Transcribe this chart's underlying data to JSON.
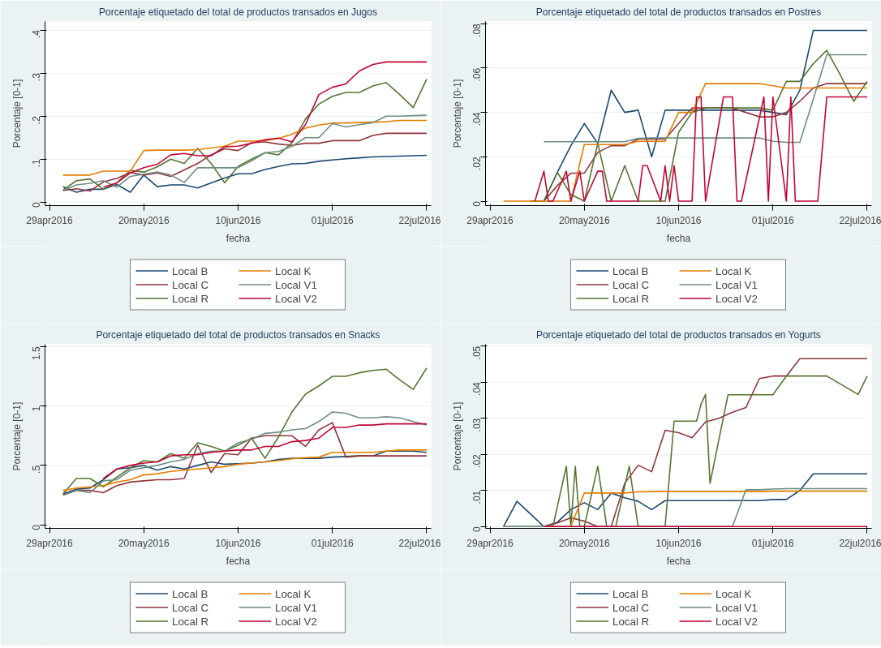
{
  "chart_data": [
    {
      "type": "line",
      "title": "Porcentaje etiquetado del total de productos transados en Jugos",
      "xlabel": "fecha",
      "ylabel": "Porcentaje [0-1]",
      "x": [
        "2016-05-02",
        "2016-05-05",
        "2016-05-08",
        "2016-05-11",
        "2016-05-14",
        "2016-05-17",
        "2016-05-20",
        "2016-05-23",
        "2016-05-26",
        "2016-05-29",
        "2016-06-01",
        "2016-06-04",
        "2016-06-07",
        "2016-06-10",
        "2016-06-13",
        "2016-06-16",
        "2016-06-19",
        "2016-06-22",
        "2016-06-25",
        "2016-06-28",
        "2016-07-01",
        "2016-07-04",
        "2016-07-07",
        "2016-07-10",
        "2016-07-13",
        "2016-07-16",
        "2016-07-19",
        "2016-07-22"
      ],
      "xlim": [
        "2016-04-28",
        "2016-07-23"
      ],
      "xticks": [
        {
          "value": "2016-04-29",
          "label": "29apr2016"
        },
        {
          "value": "2016-05-20",
          "label": "20may2016"
        },
        {
          "value": "2016-06-10",
          "label": "10jun2016"
        },
        {
          "value": "2016-07-01",
          "label": "01jul2016"
        },
        {
          "value": "2016-07-22",
          "label": "22jul2016"
        }
      ],
      "ylim": [
        -0.008,
        0.42
      ],
      "yticks": [
        0,
        {
          "value": 0.1,
          "label": ".1"
        },
        {
          "value": 0.2,
          "label": ".2"
        },
        {
          "value": 0.3,
          "label": ".3"
        },
        {
          "value": 0.4,
          "label": ".4"
        }
      ],
      "grid": "y",
      "legend": "bottom",
      "series": [
        {
          "name": "Local B",
          "color": "#1a476f",
          "values": [
            0.036,
            0.023,
            0.03,
            0.03,
            0.041,
            0.023,
            0.063,
            0.036,
            0.04,
            0.04,
            0.033,
            0.045,
            0.056,
            0.066,
            0.066,
            0.076,
            0.083,
            0.089,
            0.09,
            0.095,
            0.098,
            0.101,
            0.103,
            0.105,
            0.106,
            0.107,
            0.108,
            0.109
          ]
        },
        {
          "name": "Local C",
          "color": "#90353b",
          "values": [
            0.027,
            0.031,
            0.026,
            0.047,
            0.055,
            0.069,
            0.063,
            0.068,
            0.06,
            0.075,
            0.09,
            0.11,
            0.124,
            0.12,
            0.138,
            0.14,
            0.135,
            0.132,
            0.137,
            0.137,
            0.143,
            0.143,
            0.143,
            0.155,
            0.16,
            0.16,
            0.16,
            0.16
          ]
        },
        {
          "name": "Local R",
          "color": "#55752f",
          "values": [
            0.028,
            0.05,
            0.054,
            0.03,
            0.045,
            0.074,
            0.07,
            0.082,
            0.1,
            0.09,
            0.125,
            0.09,
            0.045,
            0.083,
            0.1,
            0.115,
            0.11,
            0.138,
            0.193,
            0.228,
            0.246,
            0.255,
            0.255,
            0.27,
            0.278,
            0.25,
            0.22,
            0.286
          ]
        },
        {
          "name": "Local K",
          "color": "#e37e00",
          "values": [
            0.063,
            0.063,
            0.063,
            0.072,
            0.072,
            0.072,
            0.12,
            0.121,
            0.121,
            0.121,
            0.122,
            0.126,
            0.13,
            0.142,
            0.142,
            0.143,
            0.148,
            0.158,
            0.172,
            0.179,
            0.184,
            0.184,
            0.185,
            0.186,
            0.187,
            0.19,
            0.19,
            0.19
          ]
        },
        {
          "name": "Local V1",
          "color": "#6e8e84",
          "values": [
            0.027,
            0.04,
            0.044,
            0.05,
            0.035,
            0.06,
            0.065,
            0.07,
            0.063,
            0.046,
            0.08,
            0.08,
            0.08,
            0.08,
            0.096,
            0.115,
            0.118,
            0.13,
            0.15,
            0.15,
            0.183,
            0.175,
            0.18,
            0.185,
            0.2,
            0.2,
            0.201,
            0.202
          ]
        },
        {
          "name": "Local V2",
          "color": "#c10534",
          "values": [
            null,
            null,
            null,
            0.035,
            0.045,
            0.068,
            0.08,
            0.088,
            0.11,
            0.113,
            0.108,
            0.108,
            0.129,
            0.13,
            0.137,
            0.145,
            0.149,
            0.14,
            0.18,
            0.25,
            0.267,
            0.275,
            0.305,
            0.32,
            0.326,
            0.326,
            0.326,
            0.326
          ]
        }
      ]
    },
    {
      "type": "line",
      "title": "Porcentaje etiquetado del total de productos transados en Postres",
      "xlabel": "fecha",
      "ylabel": "Porcentaje [0-1]",
      "x": [
        "2016-05-02",
        "2016-05-05",
        "2016-05-08",
        "2016-05-11",
        "2016-05-14",
        "2016-05-17",
        "2016-05-20",
        "2016-05-23",
        "2016-05-26",
        "2016-05-29",
        "2016-06-01",
        "2016-06-04",
        "2016-06-07",
        "2016-06-10",
        "2016-06-13",
        "2016-06-16",
        "2016-06-19",
        "2016-06-22",
        "2016-06-25",
        "2016-06-28",
        "2016-07-01",
        "2016-07-04",
        "2016-07-07",
        "2016-07-10",
        "2016-07-13",
        "2016-07-16",
        "2016-07-19",
        "2016-07-22"
      ],
      "xlim": [
        "2016-04-28",
        "2016-07-23"
      ],
      "xticks": [
        {
          "value": "2016-04-29",
          "label": "29apr2016"
        },
        {
          "value": "2016-05-20",
          "label": "20may2016"
        },
        {
          "value": "2016-06-10",
          "label": "10jun2016"
        },
        {
          "value": "2016-07-01",
          "label": "01jul2016"
        },
        {
          "value": "2016-07-22",
          "label": "22jul2016"
        }
      ],
      "ylim": [
        -0.002,
        0.081
      ],
      "yticks": [
        0,
        {
          "value": 0.02,
          "label": ".02"
        },
        {
          "value": 0.04,
          "label": ".04"
        },
        {
          "value": 0.06,
          "label": ".06"
        },
        {
          "value": 0.08,
          "label": ".08"
        }
      ],
      "grid": "y",
      "legend": "bottom",
      "series": [
        {
          "name": "Local B",
          "color": "#1a476f",
          "values": [
            null,
            null,
            null,
            0,
            0.013,
            0.025,
            0.035,
            0.026,
            0.05,
            0.04,
            0.041,
            0.02,
            0.041,
            0.041,
            0.041,
            0.041,
            0.041,
            0.041,
            0.041,
            0.041,
            0.04,
            0.039,
            0.05,
            0.077,
            0.077,
            0.077,
            0.077,
            0.077
          ]
        },
        {
          "name": "Local C",
          "color": "#90353b",
          "values": [
            null,
            null,
            0,
            0,
            0.007,
            0.0126,
            0.0126,
            0.022,
            0.025,
            0.025,
            0.028,
            0.028,
            0.028,
            0.035,
            0.042,
            0.042,
            0.042,
            0.042,
            0.04,
            0.038,
            0.038,
            0.04,
            0.045,
            0.051,
            0.053,
            0.053,
            0.053,
            0.053
          ]
        },
        {
          "name": "Local R",
          "color": "#55752f",
          "values": [
            null,
            null,
            0,
            0,
            0.013,
            0.003,
            0,
            0.026,
            0,
            0.016,
            0,
            0,
            0,
            0.031,
            0.04,
            0.042,
            0.042,
            0.042,
            0.042,
            0.042,
            0.041,
            0.054,
            0.054,
            0.062,
            0.068,
            0.057,
            0.045,
            0.054
          ]
        },
        {
          "name": "Local K",
          "color": "#e37e00",
          "values": [
            0,
            0,
            0,
            0,
            0,
            0,
            0.0255,
            0.0255,
            0.0255,
            0.0255,
            0.027,
            0.027,
            0.027,
            0.04,
            0.04,
            0.053,
            0.053,
            0.053,
            0.053,
            0.053,
            0.052,
            0.051,
            0.051,
            0.051,
            0.051,
            0.051,
            0.051,
            0.051
          ]
        },
        {
          "name": "Local V1",
          "color": "#6e8e84",
          "values": [
            null,
            null,
            null,
            0.0268,
            0.0268,
            0.0268,
            0.0268,
            0.0268,
            0.0268,
            0.0268,
            0.0283,
            0.0285,
            0.0285,
            0.0285,
            0.0285,
            0.0285,
            0.0285,
            0.0285,
            0.0285,
            0.0285,
            0.027,
            0.0265,
            0.0265,
            0.046,
            0.066,
            0.066,
            0.066,
            0.066
          ]
        },
        {
          "name": "Local V2",
          "color": "#c10534",
          "x": [
            "2016-05-09",
            "2016-05-11",
            "2016-05-12",
            "2016-05-13",
            "2016-05-16",
            "2016-05-17",
            "2016-05-19",
            "2016-05-20",
            "2016-05-23",
            "2016-05-24",
            "2016-05-25",
            "2016-06-01",
            "2016-06-02",
            "2016-06-03",
            "2016-06-06",
            "2016-06-07",
            "2016-06-08",
            "2016-06-09",
            "2016-06-10",
            "2016-06-13",
            "2016-06-14",
            "2016-06-15",
            "2016-06-16",
            "2016-06-20",
            "2016-06-22",
            "2016-06-23",
            "2016-06-24",
            "2016-06-29",
            "2016-06-30",
            "2016-07-01",
            "2016-07-04",
            "2016-07-05",
            "2016-07-06",
            "2016-07-11",
            "2016-07-13",
            "2016-07-22"
          ],
          "values": [
            0,
            0.0135,
            0,
            0,
            0.0135,
            0,
            0.0135,
            0,
            0.0135,
            0.0135,
            0,
            0,
            0.016,
            0.016,
            0,
            0.016,
            0,
            0.016,
            0,
            0,
            0.047,
            0.047,
            0,
            0.047,
            0.047,
            0,
            0,
            0.047,
            0,
            0.047,
            0,
            0.047,
            0,
            0,
            0.047,
            0.047
          ]
        }
      ]
    },
    {
      "type": "line",
      "title": "Porcentaje etiquetado del total de productos transados en Snacks",
      "xlabel": "fecha",
      "ylabel": "Porcentaje [0-1]",
      "x": [
        "2016-05-02",
        "2016-05-05",
        "2016-05-08",
        "2016-05-11",
        "2016-05-14",
        "2016-05-17",
        "2016-05-20",
        "2016-05-23",
        "2016-05-26",
        "2016-05-29",
        "2016-06-01",
        "2016-06-04",
        "2016-06-07",
        "2016-06-10",
        "2016-06-13",
        "2016-06-16",
        "2016-06-19",
        "2016-06-22",
        "2016-06-25",
        "2016-06-28",
        "2016-07-01",
        "2016-07-04",
        "2016-07-07",
        "2016-07-10",
        "2016-07-13",
        "2016-07-16",
        "2016-07-19",
        "2016-07-22"
      ],
      "xlim": [
        "2016-04-28",
        "2016-07-23"
      ],
      "xticks": [
        {
          "value": "2016-04-29",
          "label": "29apr2016"
        },
        {
          "value": "2016-05-20",
          "label": "20may2016"
        },
        {
          "value": "2016-06-10",
          "label": "10jun2016"
        },
        {
          "value": "2016-07-01",
          "label": "01jul2016"
        },
        {
          "value": "2016-07-22",
          "label": "22jul2016"
        }
      ],
      "ylim": [
        -0.03,
        1.52
      ],
      "yticks": [
        0,
        {
          "value": 0.5,
          "label": ".5"
        },
        1,
        {
          "value": 1.5,
          "label": "1.5"
        }
      ],
      "grid": "y",
      "legend": "bottom",
      "series": [
        {
          "name": "Local B",
          "color": "#1a476f",
          "values": [
            0.26,
            0.3,
            0.31,
            0.38,
            0.47,
            0.48,
            0.5,
            0.46,
            0.49,
            0.47,
            0.5,
            0.53,
            0.51,
            0.515,
            0.52,
            0.53,
            0.55,
            0.56,
            0.56,
            0.56,
            0.57,
            0.575,
            0.58,
            0.58,
            0.62,
            0.62,
            0.62,
            0.61
          ]
        },
        {
          "name": "Local C",
          "color": "#90353b",
          "values": [
            0.25,
            0.29,
            0.29,
            0.27,
            0.33,
            0.36,
            0.37,
            0.38,
            0.38,
            0.39,
            0.67,
            0.44,
            0.6,
            0.59,
            0.73,
            0.75,
            0.75,
            0.75,
            0.66,
            0.8,
            0.86,
            0.57,
            0.58,
            0.58,
            0.58,
            0.58,
            0.58,
            0.58
          ]
        },
        {
          "name": "Local R",
          "color": "#55752f",
          "values": [
            0.26,
            0.39,
            0.39,
            0.32,
            0.4,
            0.48,
            0.54,
            0.53,
            0.6,
            0.56,
            0.69,
            0.66,
            0.62,
            0.67,
            0.73,
            0.56,
            0.74,
            0.95,
            1.1,
            1.17,
            1.25,
            1.25,
            1.28,
            1.3,
            1.31,
            1.22,
            1.14,
            1.32
          ]
        },
        {
          "name": "Local K",
          "color": "#e37e00",
          "values": [
            0.29,
            0.31,
            0.32,
            0.33,
            0.36,
            0.38,
            0.42,
            0.43,
            0.45,
            0.46,
            0.47,
            0.48,
            0.49,
            0.51,
            0.52,
            0.53,
            0.54,
            0.555,
            0.565,
            0.57,
            0.61,
            0.61,
            0.61,
            0.61,
            0.62,
            0.63,
            0.63,
            0.63
          ]
        },
        {
          "name": "Local V1",
          "color": "#6e8e84",
          "values": [
            0.25,
            0.29,
            0.27,
            0.37,
            0.38,
            0.46,
            0.48,
            0.5,
            0.53,
            0.55,
            0.6,
            0.62,
            0.62,
            0.69,
            0.72,
            0.77,
            0.78,
            0.8,
            0.81,
            0.87,
            0.95,
            0.94,
            0.9,
            0.9,
            0.91,
            0.9,
            0.87,
            0.84
          ]
        },
        {
          "name": "Local V2",
          "color": "#c10534",
          "values": [
            null,
            null,
            null,
            0.39,
            0.47,
            0.5,
            0.52,
            0.53,
            0.58,
            0.59,
            0.59,
            0.61,
            0.62,
            0.63,
            0.63,
            0.66,
            0.66,
            0.7,
            0.71,
            0.73,
            0.82,
            0.82,
            0.84,
            0.84,
            0.85,
            0.85,
            0.85,
            0.85
          ]
        }
      ]
    },
    {
      "type": "line",
      "title": "Porcentaje etiquetado del total de productos transados en Yogurts",
      "xlabel": "fecha",
      "ylabel": "Porcentaje [0-1]",
      "x": [
        "2016-05-02",
        "2016-05-05",
        "2016-05-08",
        "2016-05-11",
        "2016-05-14",
        "2016-05-17",
        "2016-05-20",
        "2016-05-23",
        "2016-05-26",
        "2016-05-29",
        "2016-06-01",
        "2016-06-04",
        "2016-06-07",
        "2016-06-10",
        "2016-06-13",
        "2016-06-16",
        "2016-06-19",
        "2016-06-22",
        "2016-06-25",
        "2016-06-28",
        "2016-07-01",
        "2016-07-04",
        "2016-07-07",
        "2016-07-10",
        "2016-07-13",
        "2016-07-16",
        "2016-07-19",
        "2016-07-22"
      ],
      "xlim": [
        "2016-04-28",
        "2016-07-23"
      ],
      "xticks": [
        {
          "value": "2016-04-29",
          "label": "29apr2016"
        },
        {
          "value": "2016-05-20",
          "label": "20may2016"
        },
        {
          "value": "2016-06-10",
          "label": "10jun2016"
        },
        {
          "value": "2016-07-01",
          "label": "01jul2016"
        },
        {
          "value": "2016-07-22",
          "label": "22jul2016"
        }
      ],
      "ylim": [
        -0.0005,
        0.0505
      ],
      "yticks": [
        0,
        {
          "value": 0.01,
          "label": ".01"
        },
        {
          "value": 0.02,
          "label": ".02"
        },
        {
          "value": 0.03,
          "label": ".03"
        },
        {
          "value": 0.04,
          "label": ".04"
        },
        {
          "value": 0.05,
          "label": ".05"
        }
      ],
      "grid": "y",
      "legend": "bottom",
      "series": [
        {
          "name": "Local B",
          "color": "#1a476f",
          "values": [
            0,
            0.007,
            0.0035,
            0,
            0.0012,
            0.0047,
            0.0066,
            0.0047,
            0.0093,
            0.008,
            0.007,
            0.0047,
            0.0072,
            0.0072,
            0.0072,
            0.0072,
            0.0072,
            0.0072,
            0.0072,
            0.0072,
            0.0075,
            0.0075,
            0.01,
            0.0146,
            0.0146,
            0.0146,
            0.0146,
            0.0146
          ]
        },
        {
          "name": "Local C",
          "color": "#90353b",
          "values": [
            null,
            null,
            null,
            0,
            0.001,
            0.0024,
            0.0015,
            0,
            0,
            0.012,
            0.017,
            0.0152,
            0.0267,
            0.026,
            0.0246,
            0.029,
            0.03,
            0.0317,
            0.033,
            0.041,
            0.0417,
            0.0417,
            0.0465,
            0.0465,
            0.0465,
            0.0465,
            0.0465,
            0.0465
          ]
        },
        {
          "name": "Local R",
          "color": "#55752f",
          "x": [
            "2016-05-02",
            "2016-05-13",
            "2016-05-16",
            "2016-05-17",
            "2016-05-18",
            "2016-05-19",
            "2016-05-20",
            "2016-05-23",
            "2016-05-25",
            "2016-05-27",
            "2016-05-30",
            "2016-06-01",
            "2016-06-07",
            "2016-06-09",
            "2016-06-14",
            "2016-06-15",
            "2016-06-16",
            "2016-06-17",
            "2016-06-21",
            "2016-07-01",
            "2016-07-04",
            "2016-07-13",
            "2016-07-20",
            "2016-07-22"
          ],
          "values": [
            0,
            0,
            0.0167,
            0,
            0.0167,
            0,
            0,
            0.0167,
            0,
            0,
            0.0167,
            0,
            0,
            0.0292,
            0.0292,
            0.0339,
            0.0366,
            0.012,
            0.0365,
            0.0365,
            0.0417,
            0.0417,
            0.0366,
            0.0417
          ]
        },
        {
          "name": "Local K",
          "color": "#e37e00",
          "values": [
            null,
            null,
            null,
            0,
            0,
            0,
            0.0093,
            0.0093,
            0.0093,
            0.0093,
            0.0096,
            0.0097,
            0.0097,
            0.0097,
            0.0097,
            0.0097,
            0.0097,
            0.0097,
            0.0097,
            0.0097,
            0.0098,
            0.0098,
            0.0098,
            0.0098,
            0.0098,
            0.0098,
            0.0098,
            0.0098
          ]
        },
        {
          "name": "Local V1",
          "color": "#6e8e84",
          "values": [
            0,
            0,
            0,
            0,
            0,
            0,
            0,
            0,
            0,
            0,
            0,
            0,
            0,
            0,
            0,
            0,
            0,
            0,
            0.0102,
            0.0102,
            0.0104,
            0.0105,
            0.0105,
            0.0105,
            0.0105,
            0.0105,
            0.0105,
            0.0105
          ]
        },
        {
          "name": "Local V2",
          "color": "#c10534",
          "values": [
            null,
            null,
            null,
            0,
            0,
            0,
            0,
            0,
            0,
            0,
            0,
            0,
            0,
            0,
            0,
            0,
            0,
            0,
            0,
            0,
            0,
            0,
            0,
            0,
            0,
            0,
            0,
            0
          ]
        }
      ]
    }
  ]
}
